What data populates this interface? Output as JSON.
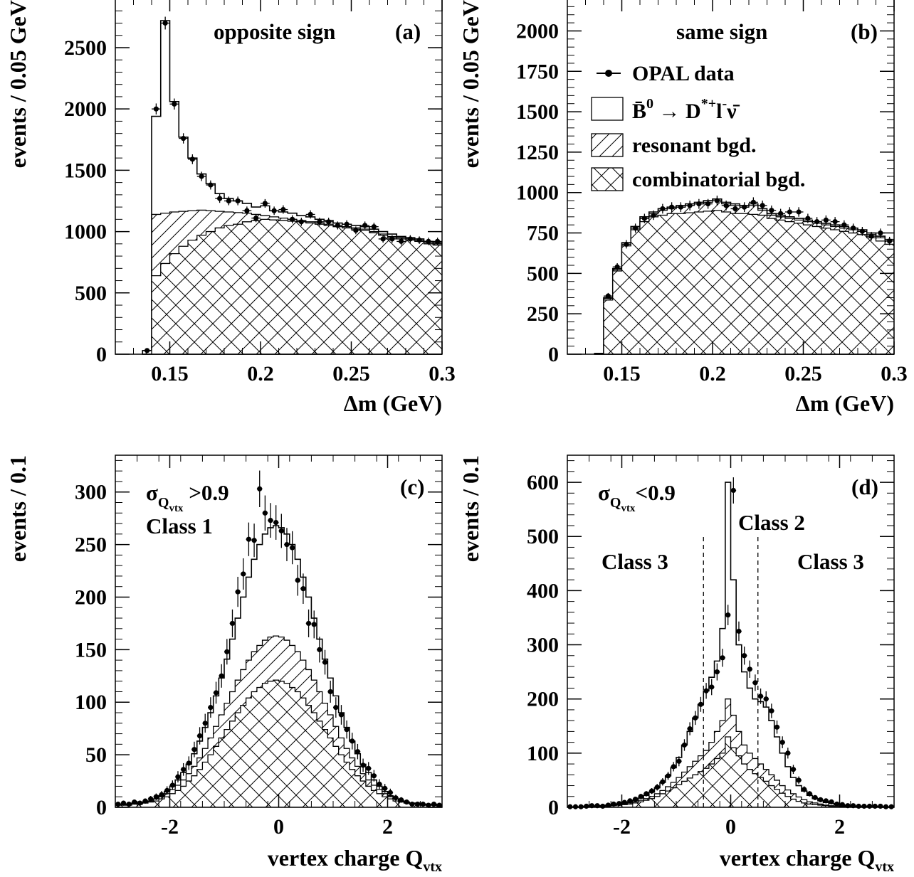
{
  "chart_data": [
    {
      "id": "a",
      "type": "histogram",
      "xlabel": "Δm (GeV)",
      "ylabel": "events / 0.05 GeV",
      "xlim": [
        0.12,
        0.3
      ],
      "ylim": [
        0,
        2900
      ],
      "xticks": [
        0.15,
        0.2,
        0.25,
        0.3
      ],
      "xtick_labels": [
        "0.15",
        "0.2",
        "0.25",
        "0.3"
      ],
      "yticks": [
        0,
        500,
        1000,
        1500,
        2000,
        2500
      ],
      "ytick_labels": [
        "0",
        "500",
        "1000",
        "1500",
        "2000",
        "2500"
      ],
      "annotations": [
        "opposite sign",
        "(a)"
      ],
      "bin_edges": [
        0.135,
        0.14,
        0.145,
        0.15,
        0.155,
        0.16,
        0.165,
        0.17,
        0.175,
        0.18,
        0.185,
        0.19,
        0.195,
        0.2,
        0.205,
        0.21,
        0.215,
        0.22,
        0.225,
        0.23,
        0.235,
        0.24,
        0.245,
        0.25,
        0.255,
        0.26,
        0.265,
        0.27,
        0.275,
        0.28,
        0.285,
        0.29,
        0.295,
        0.3
      ],
      "series": [
        {
          "name": "total",
          "values": [
            30,
            1940,
            2720,
            2060,
            1770,
            1600,
            1470,
            1390,
            1310,
            1270,
            1250,
            1230,
            1200,
            1210,
            1170,
            1160,
            1150,
            1130,
            1120,
            1100,
            1090,
            1070,
            1060,
            1050,
            1040,
            1020,
            1000,
            980,
            960,
            950,
            940,
            920,
            910
          ]
        },
        {
          "name": "background",
          "values": [
            30,
            1140,
            1150,
            1160,
            1165,
            1170,
            1175,
            1170,
            1165,
            1160,
            1155,
            1150,
            1140,
            1130,
            1120,
            1110,
            1100,
            1090,
            1080,
            1070,
            1060,
            1050,
            1040,
            1030,
            1020,
            1000,
            980,
            960,
            950,
            940,
            930,
            910,
            900
          ]
        },
        {
          "name": "combinatorial",
          "values": [
            0,
            640,
            740,
            820,
            880,
            930,
            970,
            1000,
            1030,
            1050,
            1060,
            1080,
            1090,
            1100,
            1095,
            1090,
            1085,
            1080,
            1070,
            1060,
            1050,
            1040,
            1030,
            1020,
            1010,
            990,
            970,
            950,
            940,
            930,
            920,
            900,
            890
          ]
        },
        {
          "name": "OPAL data",
          "x": [
            0.1375,
            0.1425,
            0.1475,
            0.1525,
            0.1575,
            0.1625,
            0.1675,
            0.1725,
            0.1775,
            0.1825,
            0.1875,
            0.1925,
            0.1975,
            0.2025,
            0.2075,
            0.2125,
            0.2175,
            0.2225,
            0.2275,
            0.2325,
            0.2375,
            0.2425,
            0.2475,
            0.2525,
            0.2575,
            0.2625,
            0.2675,
            0.2725,
            0.2775,
            0.2825,
            0.2875,
            0.2925,
            0.2975
          ],
          "values": [
            30,
            2000,
            2700,
            2040,
            1760,
            1590,
            1450,
            1380,
            1270,
            1250,
            1250,
            1170,
            1110,
            1230,
            1170,
            1180,
            1100,
            1080,
            1140,
            1080,
            1080,
            1050,
            1060,
            1010,
            1050,
            1040,
            940,
            940,
            920,
            940,
            930,
            920,
            920
          ]
        }
      ]
    },
    {
      "id": "b",
      "type": "histogram",
      "xlabel": "Δm (GeV)",
      "ylabel": "events / 0.05 GeV",
      "xlim": [
        0.12,
        0.3
      ],
      "ylim": [
        0,
        2200
      ],
      "xticks": [
        0.15,
        0.2,
        0.25,
        0.3
      ],
      "xtick_labels": [
        "0.15",
        "0.2",
        "0.25",
        "0.3"
      ],
      "yticks": [
        0,
        250,
        500,
        750,
        1000,
        1250,
        1500,
        1750,
        2000
      ],
      "ytick_labels": [
        "0",
        "250",
        "500",
        "750",
        "1000",
        "1250",
        "1500",
        "1750",
        "2000"
      ],
      "annotations": [
        "same sign",
        "(b)"
      ],
      "legend": {
        "position": "top-right",
        "entries": [
          {
            "label": "OPAL data",
            "style": "points"
          },
          {
            "label_parts": [
              "B̄",
              "0",
              " → D",
              "*+",
              "l",
              "-",
              "ν̄"
            ],
            "style": "open"
          },
          {
            "label": "resonant bgd.",
            "style": "hatch"
          },
          {
            "label": "combinatorial bgd.",
            "style": "crosshatch"
          }
        ]
      },
      "bin_edges": [
        0.135,
        0.14,
        0.145,
        0.15,
        0.155,
        0.16,
        0.165,
        0.17,
        0.175,
        0.18,
        0.185,
        0.19,
        0.195,
        0.2,
        0.205,
        0.21,
        0.215,
        0.22,
        0.225,
        0.23,
        0.235,
        0.24,
        0.245,
        0.25,
        0.255,
        0.26,
        0.265,
        0.27,
        0.275,
        0.28,
        0.285,
        0.29,
        0.295,
        0.3
      ],
      "series": [
        {
          "name": "total",
          "values": [
            5,
            350,
            530,
            690,
            790,
            850,
            880,
            900,
            910,
            920,
            930,
            940,
            950,
            960,
            940,
            930,
            920,
            930,
            900,
            870,
            860,
            850,
            840,
            830,
            820,
            810,
            800,
            790,
            780,
            770,
            750,
            730,
            710
          ]
        },
        {
          "name": "background",
          "values": [
            5,
            345,
            525,
            680,
            780,
            840,
            870,
            890,
            900,
            910,
            920,
            930,
            940,
            950,
            930,
            920,
            910,
            920,
            890,
            860,
            850,
            840,
            830,
            820,
            810,
            800,
            790,
            780,
            770,
            760,
            740,
            720,
            700
          ]
        },
        {
          "name": "combinatorial",
          "values": [
            5,
            335,
            515,
            670,
            770,
            820,
            850,
            860,
            870,
            870,
            875,
            880,
            885,
            890,
            880,
            870,
            870,
            865,
            860,
            840,
            830,
            820,
            810,
            800,
            790,
            780,
            770,
            760,
            750,
            740,
            720,
            700,
            680
          ]
        },
        {
          "name": "OPAL data",
          "x": [
            0.1425,
            0.1475,
            0.1525,
            0.1575,
            0.1625,
            0.1675,
            0.1725,
            0.1775,
            0.1825,
            0.1875,
            0.1925,
            0.1975,
            0.2025,
            0.2075,
            0.2125,
            0.2175,
            0.2225,
            0.2275,
            0.2325,
            0.2375,
            0.2425,
            0.2475,
            0.2525,
            0.2575,
            0.2625,
            0.2675,
            0.2725,
            0.2775,
            0.2825,
            0.2875,
            0.2925,
            0.2975
          ],
          "values": [
            360,
            540,
            680,
            780,
            840,
            860,
            900,
            910,
            910,
            920,
            930,
            930,
            950,
            920,
            900,
            910,
            940,
            920,
            890,
            870,
            880,
            880,
            840,
            820,
            830,
            820,
            800,
            780,
            760,
            730,
            750,
            700
          ]
        }
      ]
    },
    {
      "id": "c",
      "type": "histogram",
      "xlabel_parts": [
        "vertex charge Q",
        "vtx"
      ],
      "ylabel": "events / 0.1",
      "xlim": [
        -3,
        3
      ],
      "ylim": [
        0,
        335
      ],
      "xticks": [
        -2,
        0,
        2
      ],
      "xtick_labels": [
        "-2",
        "0",
        "2"
      ],
      "yticks": [
        0,
        50,
        100,
        150,
        200,
        250,
        300
      ],
      "ytick_labels": [
        "0",
        "50",
        "100",
        "150",
        "200",
        "250",
        "300"
      ],
      "annotations": [
        "(c)",
        "Class 1"
      ],
      "annotation_parts": [
        "σ",
        "Q",
        "vtx",
        " >0.9"
      ],
      "bin_start": -3,
      "bin_width": 0.1,
      "series": [
        {
          "name": "total",
          "values": [
            3,
            3,
            3,
            4,
            4,
            5,
            6,
            8,
            11,
            15,
            20,
            26,
            33,
            41,
            51,
            63,
            76,
            90,
            106,
            123,
            141,
            160,
            180,
            200,
            219,
            236,
            250,
            260,
            266,
            268,
            266,
            260,
            250,
            236,
            219,
            200,
            180,
            160,
            141,
            123,
            106,
            90,
            76,
            63,
            51,
            41,
            33,
            26,
            20,
            15,
            11,
            8,
            6,
            5,
            4,
            4,
            3,
            3,
            3,
            2
          ]
        },
        {
          "name": "background",
          "values": [
            2,
            2,
            3,
            3,
            4,
            5,
            6,
            8,
            10,
            13,
            17,
            21,
            26,
            32,
            39,
            47,
            56,
            66,
            77,
            88,
            99,
            110,
            121,
            131,
            140,
            148,
            154,
            159,
            162,
            163,
            162,
            159,
            154,
            148,
            140,
            131,
            121,
            110,
            99,
            88,
            77,
            66,
            56,
            47,
            39,
            32,
            26,
            21,
            17,
            13,
            10,
            8,
            6,
            5,
            4,
            3,
            3,
            2,
            2,
            2
          ]
        },
        {
          "name": "combinatorial",
          "values": [
            2,
            2,
            2,
            3,
            3,
            4,
            5,
            6,
            8,
            10,
            13,
            16,
            20,
            25,
            30,
            36,
            43,
            50,
            58,
            66,
            74,
            82,
            90,
            97,
            104,
            110,
            114,
            118,
            120,
            121,
            120,
            118,
            114,
            110,
            104,
            97,
            90,
            82,
            74,
            66,
            58,
            50,
            43,
            36,
            30,
            25,
            20,
            16,
            13,
            10,
            8,
            6,
            5,
            4,
            3,
            3,
            2,
            2,
            2,
            2
          ]
        },
        {
          "name": "OPAL data",
          "values": [
            3,
            4,
            3,
            5,
            4,
            6,
            8,
            10,
            12,
            16,
            21,
            29,
            36,
            42,
            55,
            68,
            80,
            95,
            109,
            125,
            148,
            175,
            205,
            222,
            255,
            254,
            303,
            280,
            273,
            271,
            263,
            250,
            247,
            216,
            208,
            175,
            174,
            150,
            138,
            110,
            95,
            88,
            74,
            63,
            53,
            40,
            37,
            30,
            22,
            18,
            14,
            9,
            7,
            5,
            3,
            3,
            3,
            2,
            3,
            2
          ]
        }
      ]
    },
    {
      "id": "d",
      "type": "histogram",
      "xlabel_parts": [
        "vertex charge Q",
        "vtx"
      ],
      "ylabel": "events / 0.1",
      "xlim": [
        -3,
        3
      ],
      "ylim": [
        0,
        650
      ],
      "xticks": [
        -2,
        0,
        2
      ],
      "xtick_labels": [
        "-2",
        "0",
        "2"
      ],
      "yticks": [
        0,
        100,
        200,
        300,
        400,
        500,
        600
      ],
      "ytick_labels": [
        "0",
        "100",
        "200",
        "300",
        "400",
        "500",
        "600"
      ],
      "annotations": [
        "(d)",
        "Class 2",
        "Class 3",
        "Class 3"
      ],
      "annotation_parts": [
        "σ",
        "Q",
        "vtx",
        "<0.9"
      ],
      "class_boundaries": [
        -0.5,
        0.5
      ],
      "bin_start": -3,
      "bin_width": 0.1,
      "series": [
        {
          "name": "total",
          "values": [
            1,
            1,
            1,
            2,
            2,
            2,
            3,
            4,
            5,
            6,
            8,
            10,
            13,
            17,
            22,
            28,
            36,
            46,
            58,
            73,
            92,
            115,
            140,
            165,
            190,
            215,
            240,
            270,
            330,
            600,
            420,
            300,
            250,
            220,
            200,
            195,
            185,
            160,
            130,
            100,
            75,
            55,
            40,
            30,
            22,
            16,
            12,
            9,
            7,
            5,
            4,
            3,
            2,
            2,
            2,
            1,
            1,
            1,
            1,
            1
          ]
        },
        {
          "name": "background",
          "values": [
            1,
            1,
            1,
            1,
            1,
            2,
            2,
            3,
            4,
            5,
            6,
            8,
            10,
            13,
            16,
            20,
            25,
            31,
            38,
            46,
            55,
            65,
            75,
            85,
            95,
            105,
            120,
            140,
            160,
            200,
            170,
            140,
            115,
            100,
            90,
            80,
            70,
            60,
            50,
            40,
            32,
            25,
            19,
            14,
            10,
            8,
            6,
            4,
            3,
            2,
            2,
            1,
            1,
            1,
            1,
            1,
            1,
            1,
            1,
            1
          ]
        },
        {
          "name": "combinatorial",
          "values": [
            1,
            1,
            1,
            1,
            1,
            1,
            2,
            2,
            3,
            4,
            5,
            6,
            8,
            10,
            13,
            16,
            20,
            25,
            30,
            36,
            42,
            48,
            54,
            60,
            66,
            72,
            80,
            90,
            100,
            130,
            110,
            95,
            80,
            70,
            62,
            55,
            48,
            40,
            33,
            26,
            20,
            15,
            11,
            8,
            6,
            5,
            4,
            3,
            2,
            2,
            1,
            1,
            1,
            1,
            1,
            1,
            1,
            1,
            1,
            1
          ]
        },
        {
          "name": "OPAL data",
          "values": [
            1,
            1,
            1,
            2,
            3,
            3,
            2,
            4,
            6,
            7,
            9,
            12,
            15,
            20,
            25,
            30,
            37,
            47,
            58,
            75,
            85,
            115,
            145,
            165,
            190,
            215,
            222,
            250,
            276,
            355,
            585,
            325,
            280,
            255,
            230,
            205,
            200,
            178,
            148,
            120,
            100,
            70,
            50,
            33,
            25,
            18,
            14,
            12,
            10,
            6,
            5,
            3,
            3,
            2,
            2,
            2,
            2,
            2,
            1,
            1
          ]
        }
      ]
    }
  ]
}
